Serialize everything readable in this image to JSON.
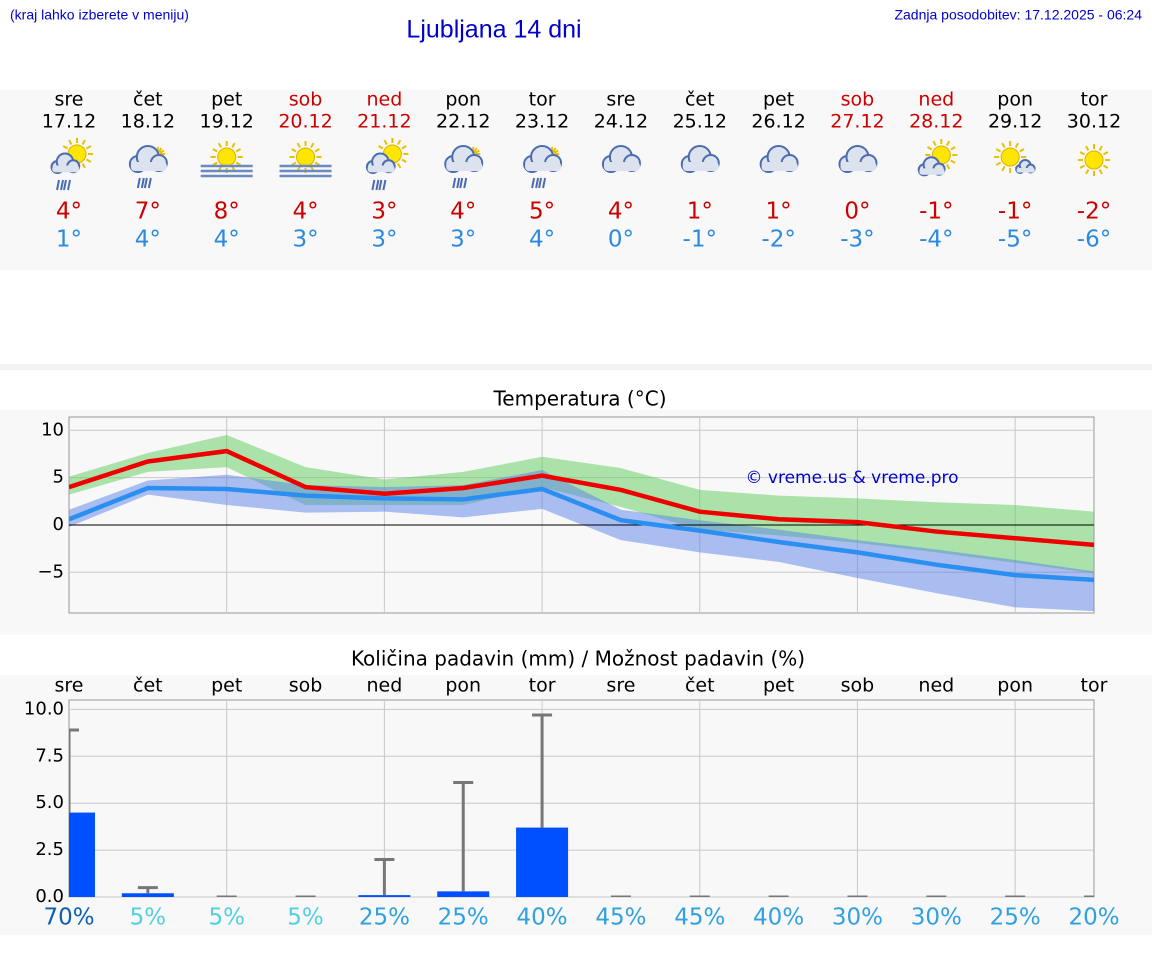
{
  "header": {
    "note": "(kraj lahko izberete v meniju)",
    "title": "Ljubljana 14 dni",
    "updated": "Zadnja posodobitev: 17.12.2025 - 06:24"
  },
  "forecast": {
    "days": [
      "sre",
      "čet",
      "pet",
      "sob",
      "ned",
      "pon",
      "tor",
      "sre",
      "čet",
      "pet",
      "sob",
      "ned",
      "pon",
      "tor"
    ],
    "dates": [
      "17.12",
      "18.12",
      "19.12",
      "20.12",
      "21.12",
      "22.12",
      "23.12",
      "24.12",
      "25.12",
      "26.12",
      "27.12",
      "28.12",
      "29.12",
      "30.12"
    ],
    "colors": [
      "#000000",
      "#000000",
      "#000000",
      "#cc0000",
      "#cc0000",
      "#000000",
      "#000000",
      "#000000",
      "#000000",
      "#000000",
      "#cc0000",
      "#cc0000",
      "#000000",
      "#000000"
    ],
    "max": [
      "4°",
      "7°",
      "8°",
      "4°",
      "3°",
      "4°",
      "5°",
      "4°",
      "1°",
      "1°",
      "0°",
      "-1°",
      "-1°",
      "-2°"
    ],
    "min": [
      "1°",
      "4°",
      "4°",
      "3°",
      "3°",
      "3°",
      "4°",
      "0°",
      "-1°",
      "-2°",
      "-3°",
      "-4°",
      "-5°",
      "-6°"
    ],
    "max_color": "#cc0000",
    "min_color": "#2a8ae0"
  },
  "chart_data": [
    {
      "type": "line",
      "title": "Temperatura (°C)",
      "categories": [
        null,
        null,
        null,
        null,
        null,
        null,
        null,
        null,
        null,
        null,
        null,
        null,
        null,
        null
      ],
      "bands": [
        {
          "color": "#5ccc5c",
          "upper": [
            5.1,
            7.6,
            9.5,
            6.1,
            4.8,
            5.6,
            7.2,
            6.0,
            3.7,
            3.1,
            2.8,
            2.4,
            2.1,
            1.4
          ],
          "lower": [
            3.2,
            5.6,
            6.1,
            2.1,
            2.1,
            2.1,
            4.0,
            1.9,
            -0.5,
            -1.1,
            -1.9,
            -2.9,
            -4.0,
            -5.1
          ]
        },
        {
          "color": "#5a82e8",
          "upper": [
            1.6,
            4.7,
            5.3,
            4.2,
            4.0,
            4.2,
            5.8,
            1.6,
            0.5,
            -0.5,
            -1.6,
            -2.6,
            -3.7,
            -4.9
          ],
          "lower": [
            -0.2,
            3.2,
            2.1,
            1.3,
            1.4,
            0.8,
            1.7,
            -1.6,
            -2.9,
            -3.9,
            -5.6,
            -7.2,
            -8.7,
            -9.1
          ]
        }
      ],
      "series": [
        {
          "color": "#2a8ff0",
          "values": [
            0.6,
            3.9,
            3.8,
            3.1,
            2.8,
            2.7,
            3.8,
            0.5,
            -0.6,
            -1.8,
            -2.9,
            -4.2,
            -5.3,
            -5.8
          ]
        },
        {
          "color": "#ee0000",
          "values": [
            4.0,
            6.7,
            7.8,
            4.0,
            3.3,
            3.9,
            5.2,
            3.7,
            1.4,
            0.6,
            0.3,
            -0.7,
            -1.4,
            -2.1
          ]
        }
      ],
      "annotation": "© vreme.us & vreme.pro",
      "ylim": [
        -9.3,
        11.4
      ],
      "yticks": [
        {
          "value": -5,
          "label": "−5"
        },
        0,
        5,
        10
      ],
      "grid": true
    },
    {
      "type": "bar",
      "title": "Količina padavin (mm) / Možnost padavin (%)",
      "categories": [
        "sre",
        "čet",
        "pet",
        "sob",
        "ned",
        "pon",
        "tor",
        "sre",
        "čet",
        "pet",
        "sob",
        "ned",
        "pon",
        "tor"
      ],
      "values": [
        4.5,
        0.2,
        0,
        0,
        0.1,
        0.3,
        3.7,
        0,
        0,
        0,
        0,
        0,
        0,
        0
      ],
      "error_upper": [
        8.9,
        0.5,
        0,
        0,
        2.0,
        6.1,
        9.7,
        0,
        0,
        0,
        0,
        0,
        0,
        0
      ],
      "color": "#0050ff",
      "error_color": "#777777",
      "ylim": [
        0,
        10.5
      ],
      "yticks": [
        {
          "value": 0,
          "label": "0.0"
        },
        {
          "value": 2.5,
          "label": "2.5"
        },
        {
          "value": 5,
          "label": "5.0"
        },
        {
          "value": 7.5,
          "label": "7.5"
        },
        {
          "value": 10,
          "label": "10.0"
        }
      ],
      "grid": true,
      "chance": {
        "values": [
          70,
          5,
          5,
          5,
          25,
          25,
          40,
          45,
          45,
          40,
          30,
          30,
          25,
          20
        ],
        "value_labels": [
          "70%",
          "5%",
          "5%",
          "5%",
          "25%",
          "25%",
          "40%",
          "45%",
          "45%",
          "40%",
          "30%",
          "30%",
          "25%",
          "20%"
        ],
        "colors": [
          "#1060b0",
          "#50d0e0",
          "#50d0e0",
          "#50d0e0",
          "#30a0e0",
          "#30a0e0",
          "#30a0e0",
          "#30a0e0",
          "#30a0e0",
          "#30a0e0",
          "#30a0e0",
          "#30a0e0",
          "#30a0e0",
          "#30a0e0"
        ]
      }
    }
  ]
}
